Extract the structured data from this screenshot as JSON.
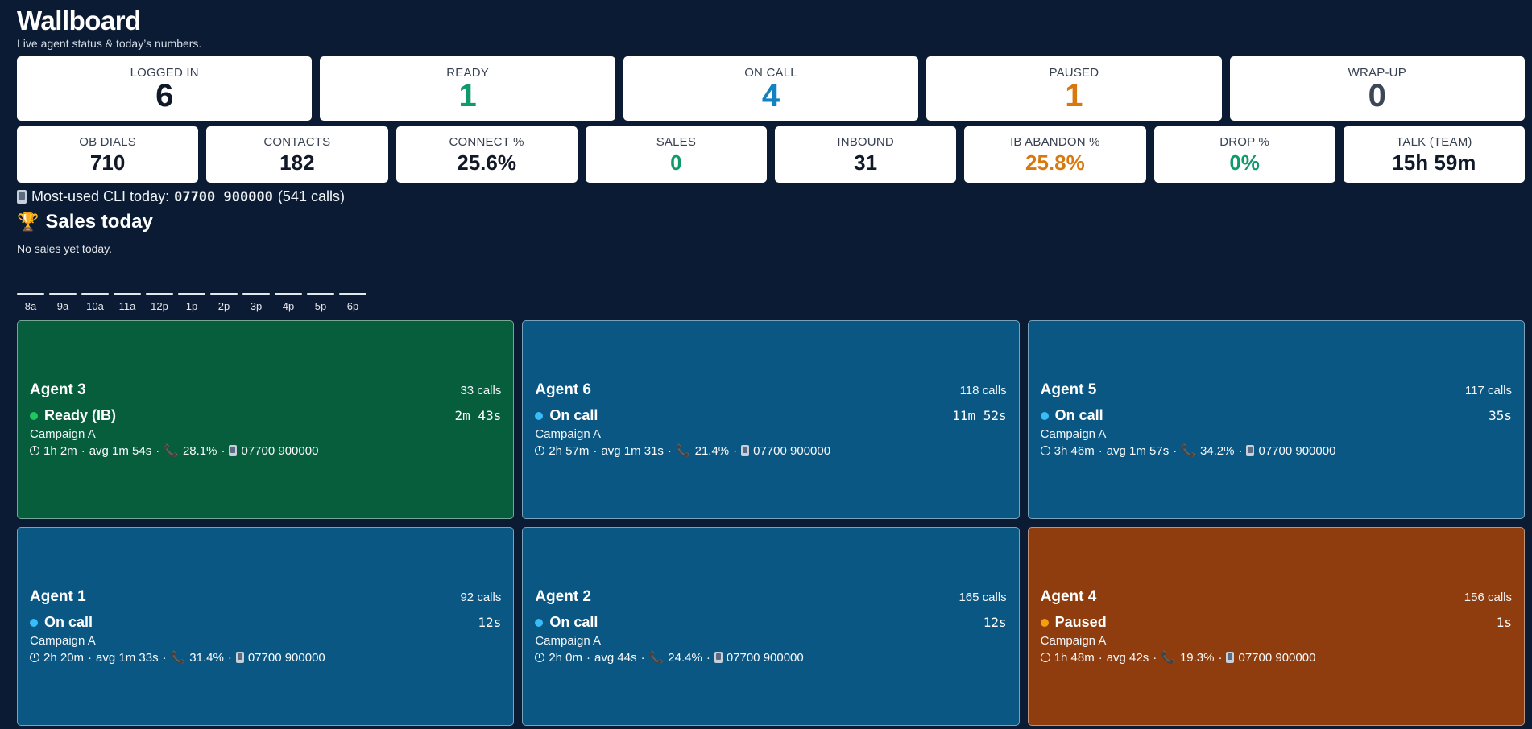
{
  "header": {
    "title": "Wallboard",
    "subtitle": "Live agent status & today’s numbers."
  },
  "kpis_top": [
    {
      "label": "LOGGED IN",
      "value": "6",
      "color": "#111827"
    },
    {
      "label": "READY",
      "value": "1",
      "color": "#0f9a6c"
    },
    {
      "label": "ON CALL",
      "value": "4",
      "color": "#1282c2"
    },
    {
      "label": "PAUSED",
      "value": "1",
      "color": "#d9780d"
    },
    {
      "label": "WRAP-UP",
      "value": "0",
      "color": "#3b4657"
    }
  ],
  "kpis_bottom": [
    {
      "label": "OB DIALS",
      "value": "710",
      "color": "#111827"
    },
    {
      "label": "CONTACTS",
      "value": "182",
      "color": "#111827"
    },
    {
      "label": "CONNECT %",
      "value": "25.6%",
      "color": "#111827"
    },
    {
      "label": "SALES",
      "value": "0",
      "color": "#0f9a6c"
    },
    {
      "label": "INBOUND",
      "value": "31",
      "color": "#111827"
    },
    {
      "label": "IB ABANDON %",
      "value": "25.8%",
      "color": "#d9780d"
    },
    {
      "label": "DROP %",
      "value": "0%",
      "color": "#0f9a6c"
    },
    {
      "label": "TALK (TEAM)",
      "value": "15h 59m",
      "color": "#111827"
    }
  ],
  "cli": {
    "icon": "mobile-phone-icon",
    "prefix": "Most-used CLI today:",
    "number": "07700 900000",
    "suffix": "(541 calls)"
  },
  "sales": {
    "icon": "trophy-icon",
    "title": "Sales today",
    "empty": "No sales yet today."
  },
  "hours": [
    "8a",
    "9a",
    "10a",
    "11a",
    "12p",
    "1p",
    "2p",
    "3p",
    "4p",
    "5p",
    "6p"
  ],
  "agents": [
    {
      "name": "Agent 3",
      "calls": "33 calls",
      "state": "Ready (IB)",
      "timer": "2m 43s",
      "campaign": "Campaign A",
      "login": "1h 2m",
      "avg": "avg 1m 54s",
      "connect": "28.1%",
      "cli": "07700 900000",
      "bg": "#075e3d",
      "dot": "#22c55e"
    },
    {
      "name": "Agent 6",
      "calls": "118 calls",
      "state": "On call",
      "timer": "11m 52s",
      "campaign": "Campaign A",
      "login": "2h 57m",
      "avg": "avg 1m 31s",
      "connect": "21.4%",
      "cli": "07700 900000",
      "bg": "#0b5783",
      "dot": "#38bdf8"
    },
    {
      "name": "Agent 5",
      "calls": "117 calls",
      "state": "On call",
      "timer": "35s",
      "campaign": "Campaign A",
      "login": "3h 46m",
      "avg": "avg 1m 57s",
      "connect": "34.2%",
      "cli": "07700 900000",
      "bg": "#0b5783",
      "dot": "#38bdf8"
    },
    {
      "name": "Agent 1",
      "calls": "92 calls",
      "state": "On call",
      "timer": "12s",
      "campaign": "Campaign A",
      "login": "2h 20m",
      "avg": "avg 1m 33s",
      "connect": "31.4%",
      "cli": "07700 900000",
      "bg": "#0b5783",
      "dot": "#38bdf8"
    },
    {
      "name": "Agent 2",
      "calls": "165 calls",
      "state": "On call",
      "timer": "12s",
      "campaign": "Campaign A",
      "login": "2h 0m",
      "avg": "avg 44s",
      "connect": "24.4%",
      "cli": "07700 900000",
      "bg": "#0b5783",
      "dot": "#38bdf8"
    },
    {
      "name": "Agent 4",
      "calls": "156 calls",
      "state": "Paused",
      "timer": "1s",
      "campaign": "Campaign A",
      "login": "1h 48m",
      "avg": "avg 42s",
      "connect": "19.3%",
      "cli": "07700 900000",
      "bg": "#8f3d0e",
      "dot": "#f59e0b"
    }
  ]
}
